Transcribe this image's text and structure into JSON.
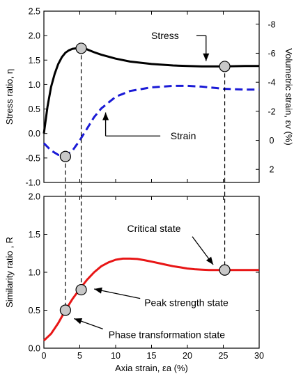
{
  "chart_data": [
    {
      "type": "line",
      "panel": "top",
      "xlabel": "",
      "ylabel": "Stress ratio, η",
      "y2label": "Volumetric strain, εv (%)",
      "xlim": [
        0,
        30
      ],
      "ylim": [
        -1.0,
        2.5
      ],
      "y2lim": [
        2.9,
        -8.9
      ],
      "xticks": [
        0,
        5,
        10,
        15,
        20,
        25,
        30
      ],
      "yticks": [
        "-1.0",
        "-0.5",
        "0.0",
        "0.5",
        "1.0",
        "1.5",
        "2.0",
        "2.5"
      ],
      "y2ticks": [
        "2",
        "0",
        "-2",
        "-4",
        "-6",
        "-8"
      ],
      "series": [
        {
          "name": "Stress",
          "axis": "left",
          "color": "#000000",
          "style": "solid",
          "x": [
            0,
            0.5,
            1,
            1.5,
            2,
            2.5,
            3,
            3.5,
            4,
            4.5,
            5,
            6,
            7,
            8,
            10,
            12,
            15,
            18,
            20,
            22,
            25,
            28,
            30
          ],
          "y": [
            0.0,
            0.55,
            0.95,
            1.22,
            1.42,
            1.56,
            1.65,
            1.7,
            1.73,
            1.74,
            1.74,
            1.72,
            1.66,
            1.61,
            1.53,
            1.47,
            1.42,
            1.39,
            1.38,
            1.37,
            1.37,
            1.38,
            1.38
          ]
        },
        {
          "name": "Strain",
          "axis": "right",
          "color": "#1a1ad6",
          "style": "dashed",
          "x": [
            0,
            1,
            2,
            3,
            4,
            5,
            6,
            7,
            8,
            10,
            12,
            15,
            18,
            20,
            22,
            25,
            28,
            30
          ],
          "y": [
            0.2,
            0.7,
            1.0,
            1.05,
            0.7,
            0.0,
            -0.8,
            -1.6,
            -2.2,
            -3.0,
            -3.4,
            -3.65,
            -3.75,
            -3.75,
            -3.7,
            -3.55,
            -3.5,
            -3.5
          ]
        }
      ],
      "markers": [
        {
          "x": 3,
          "y": -0.47,
          "axis": "left"
        },
        {
          "x": 5.2,
          "y": 1.74,
          "axis": "left"
        },
        {
          "x": 25.2,
          "y": 1.37,
          "axis": "left"
        }
      ],
      "annotations": [
        {
          "text": "Stress",
          "at": [
            13,
            2.0
          ],
          "arrow_to": [
            22.6,
            1.48
          ]
        },
        {
          "text": "Strain",
          "at": [
            17,
            -0.05
          ],
          "arrow_to": [
            8.6,
            0.43
          ]
        }
      ]
    },
    {
      "type": "line",
      "panel": "bottom",
      "xlabel": "Axia strain, εa (%)",
      "ylabel": "Similarity ratio , R",
      "xlim": [
        0,
        30
      ],
      "ylim": [
        0,
        2.0
      ],
      "xticks": [
        0,
        5,
        10,
        15,
        20,
        25,
        30
      ],
      "yticks": [
        "0.0",
        "0.5",
        "1.0",
        "1.5",
        "2.0"
      ],
      "series": [
        {
          "name": "",
          "color": "#e81616",
          "style": "solid",
          "x": [
            0,
            1,
            2,
            3,
            4,
            5,
            6,
            7,
            8,
            9,
            10,
            11,
            12,
            13,
            14,
            15,
            16,
            17,
            18,
            19,
            20,
            21,
            22,
            23,
            24,
            25,
            26,
            28,
            30
          ],
          "y": [
            0.1,
            0.19,
            0.33,
            0.5,
            0.65,
            0.78,
            0.9,
            1.0,
            1.08,
            1.13,
            1.165,
            1.18,
            1.18,
            1.175,
            1.16,
            1.14,
            1.12,
            1.1,
            1.08,
            1.065,
            1.05,
            1.04,
            1.035,
            1.03,
            1.03,
            1.03,
            1.03,
            1.03,
            1.03
          ]
        }
      ],
      "markers": [
        {
          "x": 3,
          "y": 0.5
        },
        {
          "x": 5.2,
          "y": 0.77
        },
        {
          "x": 25.2,
          "y": 1.03
        }
      ],
      "annotations": [
        {
          "text": "Critical state",
          "at": [
            10,
            1.58
          ],
          "arrow_to": [
            23.6,
            1.1
          ]
        },
        {
          "text": "Peak strength state",
          "at": [
            14,
            0.6
          ],
          "arrow_to": [
            7,
            0.78
          ]
        },
        {
          "text": "Phase transformation state",
          "at": [
            9,
            0.18
          ],
          "arrow_to": [
            4.2,
            0.39
          ]
        }
      ]
    }
  ]
}
